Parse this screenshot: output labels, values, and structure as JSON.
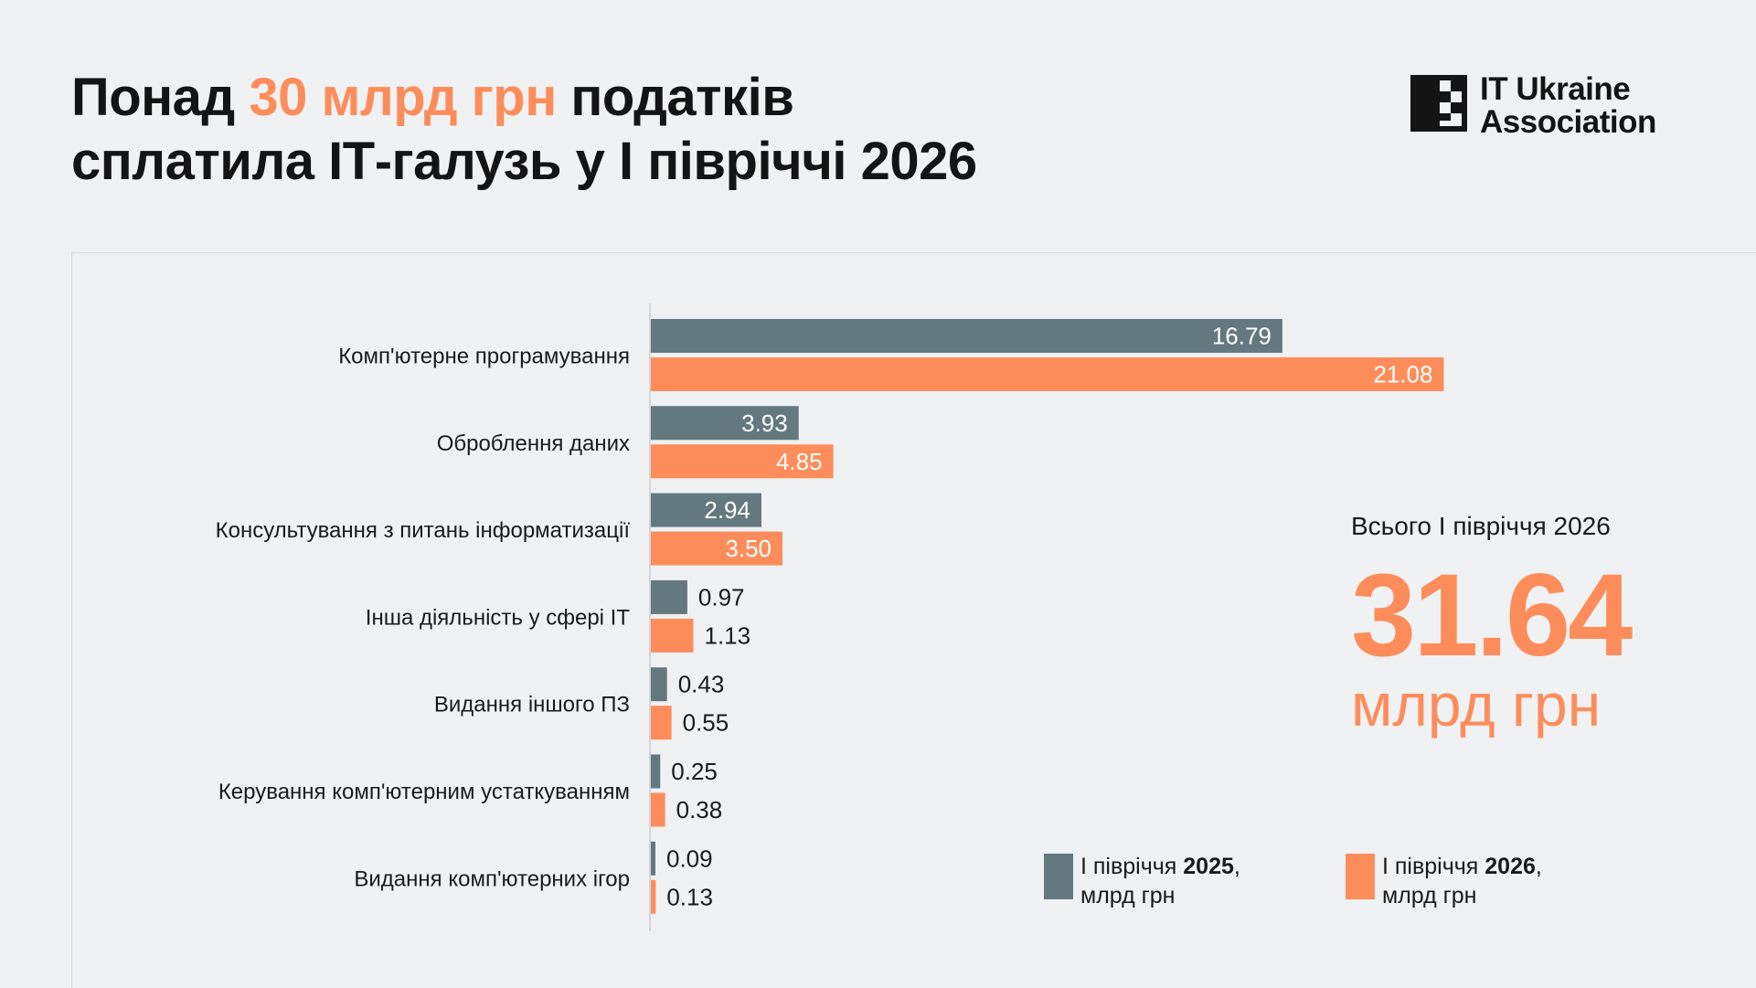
{
  "title": {
    "part1": "Понад ",
    "highlight": "30 млрд грн",
    "part2": " податків",
    "line2": "сплатила ІТ-галузь у І півріччі 2026"
  },
  "logo": {
    "line1": "IT Ukraine",
    "line2": "Association"
  },
  "total": {
    "label": "Всього І півріччя 2026",
    "value": "31.64",
    "unit": "млрд грн"
  },
  "legend": [
    {
      "text": "І півріччя ",
      "year": "2025",
      "suffix": ",",
      "unit": "млрд грн",
      "color": "#647880"
    },
    {
      "text": "І півріччя ",
      "year": "2026",
      "suffix": ",",
      "unit": "млрд грн",
      "color": "#fc8d5b"
    }
  ],
  "colors": {
    "series2025": "#647880",
    "series2026": "#fc8d5b",
    "accent": "#fc8d5b",
    "background": "#f0f1f3"
  },
  "chart_data": {
    "type": "bar",
    "orientation": "horizontal",
    "categories": [
      "Комп'ютерне програмування",
      "Оброблення даних",
      "Консультування з питань інформатизації",
      "Інша діяльність у сфері ІТ",
      "Видання іншого ПЗ",
      "Керування комп'ютерним устаткуванням",
      "Видання комп'ютерних ігор"
    ],
    "series": [
      {
        "name": "І півріччя 2025, млрд грн",
        "values": [
          16.79,
          3.93,
          2.94,
          0.97,
          0.43,
          0.25,
          0.09
        ],
        "labels": [
          "16.79",
          "3.93",
          "2.94",
          "0.97",
          "0.43",
          "0.25",
          "0.09"
        ]
      },
      {
        "name": "І півріччя 2026, млрд грн",
        "values": [
          21.08,
          4.85,
          3.5,
          1.13,
          0.55,
          0.38,
          0.13
        ],
        "labels": [
          "21.08",
          "4.85",
          "3.50",
          "1.13",
          "0.55",
          "0.38",
          "0.13"
        ]
      }
    ],
    "grid": false,
    "legend_position": "bottom-right"
  }
}
